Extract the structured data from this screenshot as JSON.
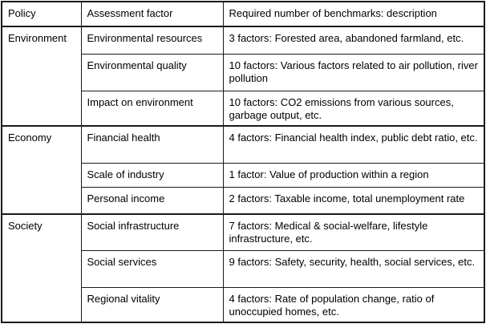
{
  "table": {
    "headers": {
      "policy": "Policy",
      "factor": "Assessment factor",
      "description": "Required number of benchmarks: description"
    },
    "groups": [
      {
        "policy": "Environment",
        "rows": [
          {
            "factor": "Environmental resources",
            "description": "3 factors: Forested area, abandoned farmland, etc."
          },
          {
            "factor": "Environmental quality",
            "description": "10 factors: Various factors related to air pollution, river pollution"
          },
          {
            "factor": "Impact on environment",
            "description": "10 factors: CO2 emissions from various sources, garbage output, etc."
          }
        ]
      },
      {
        "policy": "Economy",
        "rows": [
          {
            "factor": "Financial health",
            "description": "4 factors: Financial health index, public debt ratio, etc."
          },
          {
            "factor": "Scale of industry",
            "description": "1 factor: Value of production within a region"
          },
          {
            "factor": "Personal income",
            "description": "2 factors: Taxable income, total unemployment rate"
          }
        ]
      },
      {
        "policy": "Society",
        "rows": [
          {
            "factor": "Social infrastructure",
            "description": "7 factors: Medical &amp; social-welfare, lifestyle infrastructure, etc."
          },
          {
            "factor": "Social services",
            "description": "9 factors: Safety, security, health, social services, etc."
          },
          {
            "factor": "Regional vitality",
            "description": "4 factors: Rate of population change, ratio of unoccupied homes, etc."
          }
        ]
      }
    ]
  }
}
